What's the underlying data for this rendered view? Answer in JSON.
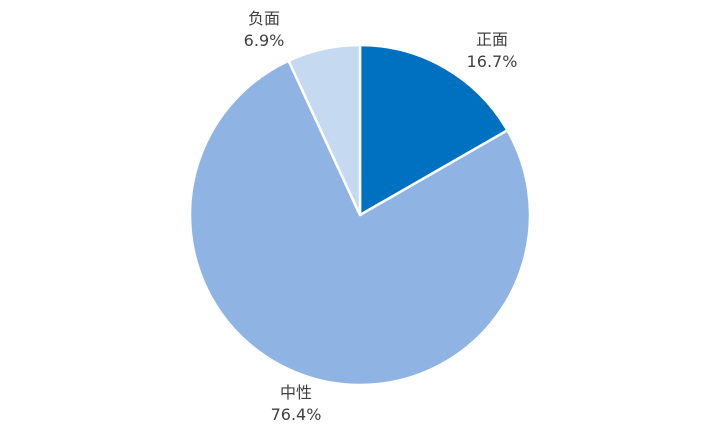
{
  "chart_data": {
    "type": "pie",
    "start_angle": "top, clockwise",
    "categories": [
      "正面",
      "中性",
      "负面"
    ],
    "values": [
      16.7,
      76.4,
      6.9
    ],
    "value_labels": [
      "16.7%",
      "76.4%",
      "6.9%"
    ],
    "colors": [
      "#0070C0",
      "#8FB4E3",
      "#C5D9F1"
    ],
    "legend": "none",
    "title": ""
  }
}
